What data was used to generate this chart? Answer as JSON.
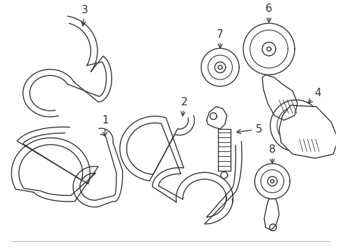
{
  "background_color": "#ffffff",
  "line_color": "#333333",
  "line_width": 1.0,
  "label_fontsize": 11,
  "figsize": [
    4.89,
    3.6
  ],
  "dpi": 100
}
